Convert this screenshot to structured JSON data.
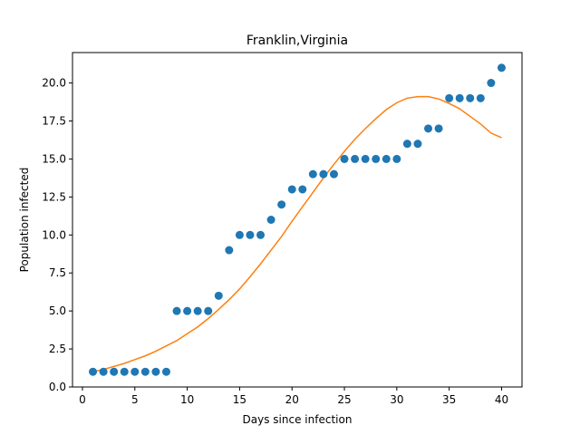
{
  "chart_data": {
    "type": "scatter",
    "title": "Franklin,Virginia",
    "xlabel": "Days since infection",
    "ylabel": "Population infected",
    "xlim": [
      -0.95,
      41.95
    ],
    "ylim": [
      0,
      22
    ],
    "xticks": [
      0,
      5,
      10,
      15,
      20,
      25,
      30,
      35,
      40
    ],
    "yticks": [
      0.0,
      2.5,
      5.0,
      7.5,
      10.0,
      12.5,
      15.0,
      17.5,
      20.0
    ],
    "ytick_labels": [
      "0.0",
      "2.5",
      "5.0",
      "7.5",
      "10.0",
      "12.5",
      "15.0",
      "17.5",
      "20.0"
    ],
    "grid": false,
    "series": [
      {
        "kind": "scatter",
        "color": "#1f77b4",
        "x": [
          1,
          2,
          3,
          4,
          5,
          6,
          7,
          8,
          9,
          10,
          11,
          12,
          13,
          14,
          15,
          16,
          17,
          18,
          19,
          20,
          21,
          22,
          23,
          24,
          25,
          26,
          27,
          28,
          29,
          30,
          31,
          32,
          33,
          34,
          35,
          36,
          37,
          38,
          39,
          40
        ],
        "y": [
          1,
          1,
          1,
          1,
          1,
          1,
          1,
          1,
          5,
          5,
          5,
          5,
          6,
          9,
          10,
          10,
          10,
          11,
          12,
          13,
          13,
          14,
          14,
          14,
          15,
          15,
          15,
          15,
          15,
          15,
          16,
          16,
          17,
          17,
          19,
          19,
          19,
          19,
          20,
          21
        ]
      },
      {
        "kind": "line",
        "color": "#ff7f0e",
        "x": [
          1,
          2,
          3,
          4,
          5,
          6,
          7,
          8,
          9,
          10,
          11,
          12,
          13,
          14,
          15,
          16,
          17,
          18,
          19,
          20,
          21,
          22,
          23,
          24,
          25,
          26,
          27,
          28,
          29,
          30,
          31,
          32,
          33,
          34,
          35,
          36,
          37,
          38,
          39,
          40
        ],
        "y": [
          1.0,
          1.15,
          1.35,
          1.55,
          1.8,
          2.05,
          2.35,
          2.7,
          3.05,
          3.5,
          3.95,
          4.5,
          5.1,
          5.75,
          6.45,
          7.25,
          8.1,
          9.0,
          9.9,
          10.9,
          11.85,
          12.8,
          13.75,
          14.65,
          15.5,
          16.3,
          17.0,
          17.65,
          18.25,
          18.7,
          19.0,
          19.1,
          19.1,
          18.95,
          18.65,
          18.3,
          17.8,
          17.3,
          16.7,
          16.4
        ]
      }
    ]
  }
}
